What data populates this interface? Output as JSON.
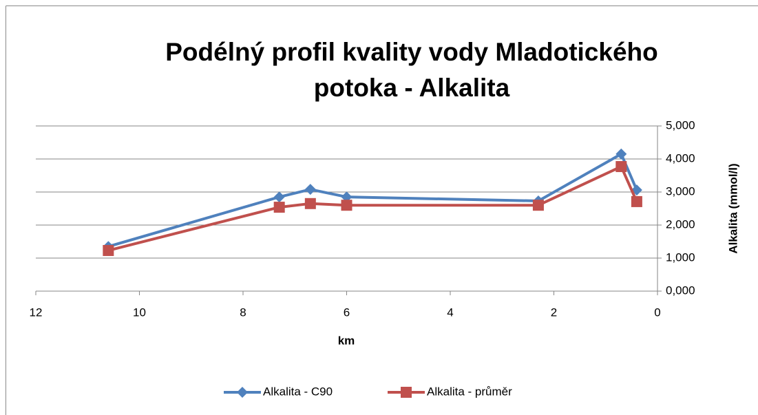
{
  "chart_data": {
    "type": "line",
    "title": [
      "Podélný profil kvality vody Mladotického",
      "potoka - Alkalita"
    ],
    "x_label": "km",
    "y_label": "Alkalita (mmol/l)",
    "xlim": [
      12,
      0
    ],
    "xticks": [
      12,
      10,
      8,
      6,
      4,
      2,
      0
    ],
    "ylim": [
      0,
      5
    ],
    "yticks": [
      {
        "value": 0,
        "label": "0,000"
      },
      {
        "value": 1,
        "label": "1,000"
      },
      {
        "value": 2,
        "label": "2,000"
      },
      {
        "value": 3,
        "label": "3,000"
      },
      {
        "value": 4,
        "label": "4,000"
      },
      {
        "value": 5,
        "label": "5,000"
      }
    ],
    "grid": true,
    "legend": "bottom",
    "x": [
      10.6,
      7.3,
      6.7,
      6.0,
      2.3,
      0.7,
      0.4
    ],
    "series": [
      {
        "name": "Alkalita - C90",
        "color": "#4f81bd",
        "marker": "diamond",
        "values": [
          1.35,
          2.85,
          3.08,
          2.85,
          2.73,
          4.15,
          3.06
        ]
      },
      {
        "name": "Alkalita - průměr",
        "color": "#c0504d",
        "marker": "square",
        "values": [
          1.23,
          2.54,
          2.65,
          2.6,
          2.6,
          3.77,
          2.71
        ]
      }
    ]
  }
}
